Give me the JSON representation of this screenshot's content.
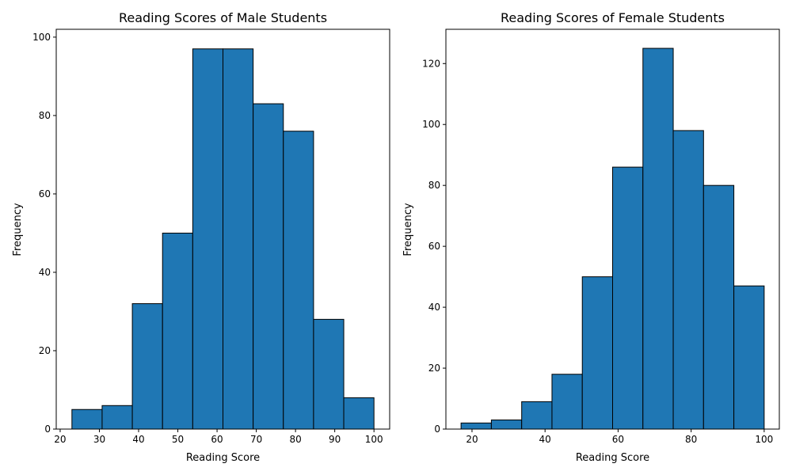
{
  "chart_data": [
    {
      "type": "histogram",
      "title": "Reading Scores of Male Students",
      "xlabel": "Reading Score",
      "ylabel": "Frequency",
      "xlim": [
        19,
        104
      ],
      "ylim": [
        0,
        102
      ],
      "xticks": [
        20,
        30,
        40,
        50,
        60,
        70,
        80,
        90,
        100
      ],
      "yticks": [
        0,
        20,
        40,
        60,
        80,
        100
      ],
      "bin_edges": [
        23,
        30.7,
        38.4,
        46.1,
        53.8,
        61.5,
        69.2,
        76.9,
        84.6,
        92.3,
        100
      ],
      "values": [
        5,
        6,
        32,
        50,
        97,
        97,
        83,
        76,
        28,
        8
      ],
      "bar_color": "#1f77b4",
      "edge_color": "#000000"
    },
    {
      "type": "histogram",
      "title": "Reading Scores of Female Students",
      "xlabel": "Reading Score",
      "ylabel": "Frequency",
      "xlim": [
        12.85,
        104.15
      ],
      "ylim": [
        0,
        131.25
      ],
      "xticks": [
        20,
        40,
        60,
        80,
        100
      ],
      "yticks": [
        0,
        20,
        40,
        60,
        80,
        100,
        120
      ],
      "bin_edges": [
        17,
        25.3,
        33.6,
        41.9,
        50.2,
        58.5,
        66.8,
        75.1,
        83.4,
        91.7,
        100
      ],
      "values": [
        2,
        3,
        9,
        18,
        50,
        86,
        125,
        98,
        80,
        47
      ],
      "bar_color": "#1f77b4",
      "edge_color": "#000000"
    }
  ]
}
